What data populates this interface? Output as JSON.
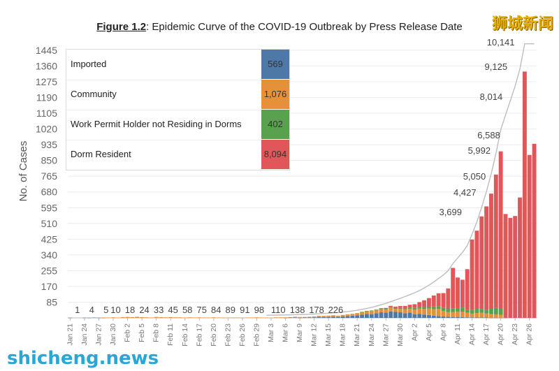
{
  "figure_label": "Figure 1.2",
  "figure_title": ": Epidemic Curve of the COVID-19 Outbreak by Press Release Date",
  "watermark_top": "狮城新闻",
  "watermark_bottom": "shicheng.news",
  "legend": {
    "items": [
      {
        "label": "Imported",
        "value": "569",
        "color": "#4e79a7"
      },
      {
        "label": "Community",
        "value": "1,076",
        "color": "#e6913a"
      },
      {
        "label": "Work Permit Holder not Residing in Dorms",
        "value": "402",
        "color": "#59a14f"
      },
      {
        "label": "Dorm Resident",
        "value": "8,094",
        "color": "#e15759"
      }
    ]
  },
  "chart_data": {
    "type": "bar",
    "ylabel": "No. of Cases",
    "yticks": [
      85,
      170,
      255,
      340,
      425,
      510,
      595,
      680,
      765,
      850,
      935,
      1020,
      1105,
      1190,
      1275,
      1360,
      1445
    ],
    "ylim": [
      0,
      1490
    ],
    "xlabels": [
      "Jan 21",
      "Jan 24",
      "Jan 27",
      "Jan 30",
      "Feb 2",
      "Feb 5",
      "Feb 8",
      "Feb 11",
      "Feb 14",
      "Feb 17",
      "Feb 20",
      "Feb 23",
      "Feb 26",
      "Feb 29",
      "Mar 3",
      "Mar 6",
      "Mar 9",
      "Mar 12",
      "Mar 15",
      "Mar 18",
      "Mar 21",
      "Mar 24",
      "Mar 27",
      "Mar 30",
      "Apr 2",
      "Apr 5",
      "Apr 8",
      "Apr 11",
      "Apr 14",
      "Apr 17",
      "Apr 20",
      "Apr 23",
      "Apr 26"
    ],
    "day_count": 98,
    "cumulative_labels": [
      {
        "day": 2,
        "text": "1"
      },
      {
        "day": 5,
        "text": "4"
      },
      {
        "day": 8,
        "text": "5"
      },
      {
        "day": 10,
        "text": "10"
      },
      {
        "day": 13,
        "text": "18"
      },
      {
        "day": 16,
        "text": "24"
      },
      {
        "day": 19,
        "text": "33"
      },
      {
        "day": 22,
        "text": "45"
      },
      {
        "day": 25,
        "text": "58"
      },
      {
        "day": 28,
        "text": "75"
      },
      {
        "day": 31,
        "text": "84"
      },
      {
        "day": 34,
        "text": "89"
      },
      {
        "day": 37,
        "text": "91"
      },
      {
        "day": 40,
        "text": "98"
      },
      {
        "day": 44,
        "text": "110"
      },
      {
        "day": 48,
        "text": "138"
      },
      {
        "day": 52,
        "text": "178"
      },
      {
        "day": 56,
        "text": "226"
      },
      {
        "day": 80,
        "text": "3,699"
      },
      {
        "day": 83,
        "text": "4,427"
      },
      {
        "day": 85,
        "text": "5,050"
      },
      {
        "day": 86,
        "text": "5,992"
      },
      {
        "day": 88,
        "text": "6,588"
      },
      {
        "day": 88.5,
        "text": "8,014"
      },
      {
        "day": 89.5,
        "text": "9,125"
      },
      {
        "day": 90.5,
        "text": "10,141"
      }
    ],
    "series": [
      {
        "name": "Imported",
        "color": "#4e79a7",
        "values": [
          1,
          0,
          0,
          1,
          1,
          2,
          1,
          1,
          0,
          0,
          0,
          0,
          0,
          0,
          0,
          0,
          0,
          0,
          0,
          0,
          0,
          0,
          0,
          0,
          0,
          0,
          0,
          0,
          0,
          0,
          0,
          0,
          0,
          0,
          0,
          0,
          0,
          0,
          0,
          0,
          0,
          0,
          0,
          0,
          0,
          1,
          2,
          3,
          1,
          2,
          2,
          3,
          5,
          4,
          4,
          6,
          5,
          8,
          10,
          12,
          14,
          18,
          22,
          20,
          25,
          30,
          28,
          35,
          32,
          30,
          25,
          28,
          20,
          22,
          18,
          16,
          12,
          10,
          8,
          6,
          5,
          5,
          4,
          3,
          3,
          2,
          2,
          2,
          1,
          1,
          1,
          1,
          0,
          0,
          0,
          0,
          0,
          0
        ]
      },
      {
        "name": "Community",
        "color": "#e6913a",
        "values": [
          0,
          0,
          0,
          0,
          0,
          0,
          0,
          1,
          2,
          3,
          2,
          4,
          5,
          4,
          6,
          4,
          3,
          2,
          5,
          4,
          3,
          4,
          3,
          3,
          2,
          3,
          2,
          3,
          2,
          2,
          3,
          2,
          1,
          2,
          1,
          2,
          1,
          2,
          2,
          3,
          2,
          2,
          1,
          3,
          3,
          2,
          2,
          3,
          4,
          3,
          4,
          5,
          6,
          7,
          8,
          8,
          7,
          8,
          9,
          10,
          12,
          14,
          15,
          18,
          16,
          17,
          18,
          20,
          16,
          18,
          22,
          20,
          25,
          28,
          30,
          34,
          35,
          38,
          30,
          25,
          27,
          28,
          30,
          25,
          20,
          24,
          26,
          22,
          20,
          18,
          16,
          0,
          0,
          0,
          0,
          0,
          0,
          0
        ]
      },
      {
        "name": "Work Permit Holder not Residing in Dorms",
        "color": "#59a14f",
        "values": [
          0,
          0,
          0,
          0,
          0,
          0,
          0,
          0,
          0,
          0,
          0,
          0,
          0,
          0,
          0,
          0,
          0,
          0,
          0,
          0,
          0,
          0,
          0,
          0,
          0,
          0,
          0,
          0,
          0,
          0,
          0,
          0,
          0,
          0,
          0,
          0,
          0,
          0,
          0,
          0,
          0,
          0,
          0,
          0,
          0,
          0,
          0,
          0,
          0,
          0,
          0,
          0,
          0,
          0,
          0,
          0,
          0,
          0,
          0,
          0,
          0,
          1,
          1,
          2,
          2,
          3,
          3,
          4,
          5,
          6,
          6,
          8,
          9,
          10,
          12,
          12,
          14,
          15,
          16,
          18,
          18,
          20,
          22,
          15,
          20,
          25,
          20,
          18,
          30,
          35,
          32,
          0,
          0,
          0,
          0,
          0,
          0,
          0
        ]
      },
      {
        "name": "Dorm Resident",
        "color": "#e15759",
        "values": [
          0,
          0,
          0,
          0,
          0,
          0,
          0,
          0,
          0,
          0,
          0,
          0,
          0,
          0,
          0,
          0,
          0,
          0,
          0,
          0,
          0,
          0,
          0,
          0,
          0,
          0,
          0,
          0,
          0,
          0,
          0,
          0,
          0,
          0,
          0,
          0,
          0,
          0,
          0,
          0,
          0,
          0,
          0,
          0,
          0,
          0,
          0,
          0,
          0,
          0,
          0,
          0,
          0,
          0,
          0,
          0,
          0,
          0,
          0,
          0,
          0,
          0,
          0,
          0,
          2,
          3,
          5,
          6,
          8,
          10,
          12,
          15,
          20,
          25,
          35,
          45,
          60,
          70,
          80,
          110,
          220,
          165,
          150,
          220,
          380,
          420,
          500,
          560,
          620,
          720,
          850,
          560,
          540,
          550,
          650,
          1330,
          880,
          940
        ]
      }
    ]
  }
}
